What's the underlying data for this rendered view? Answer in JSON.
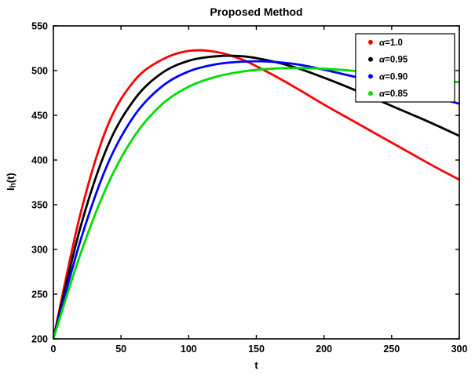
{
  "figure": {
    "background": "#ffffff",
    "axes_color": "#000000"
  },
  "chart_data": {
    "type": "line",
    "title": "Proposed Method",
    "xlabel": "t",
    "ylabel": {
      "base": "I",
      "sub": "h",
      "rest": "(t)"
    },
    "xlim": [
      0,
      300
    ],
    "ylim": [
      200,
      550
    ],
    "xticks": [
      0,
      50,
      100,
      150,
      200,
      250,
      300
    ],
    "yticks": [
      200,
      250,
      300,
      350,
      400,
      450,
      500,
      550
    ],
    "grid": false,
    "legend_position": "top-right",
    "x": [
      0,
      20,
      40,
      60,
      80,
      100,
      120,
      140,
      160,
      180,
      200,
      220,
      240,
      260,
      280,
      300
    ],
    "series": [
      {
        "name": "α=1.0",
        "color": "#ff0000",
        "values": [
          200,
          340,
          438,
          489,
          512,
          522,
          521,
          512,
          497,
          480,
          462,
          445,
          428,
          411,
          394,
          378
        ]
      },
      {
        "name": "α=0.95",
        "color": "#000000",
        "values": [
          200,
          325,
          415,
          468,
          497,
          511,
          516,
          516,
          511,
          503,
          492,
          480,
          467,
          454,
          441,
          427
        ]
      },
      {
        "name": "α=0.90",
        "color": "#0000ff",
        "values": [
          200,
          310,
          395,
          450,
          482,
          499,
          507,
          510,
          510,
          507,
          501,
          494,
          487,
          479,
          471,
          463
        ]
      },
      {
        "name": "α=0.85",
        "color": "#00dd00",
        "values": [
          200,
          295,
          372,
          427,
          462,
          482,
          493,
          499,
          502,
          503,
          502,
          500,
          497,
          494,
          490,
          487
        ]
      }
    ]
  }
}
